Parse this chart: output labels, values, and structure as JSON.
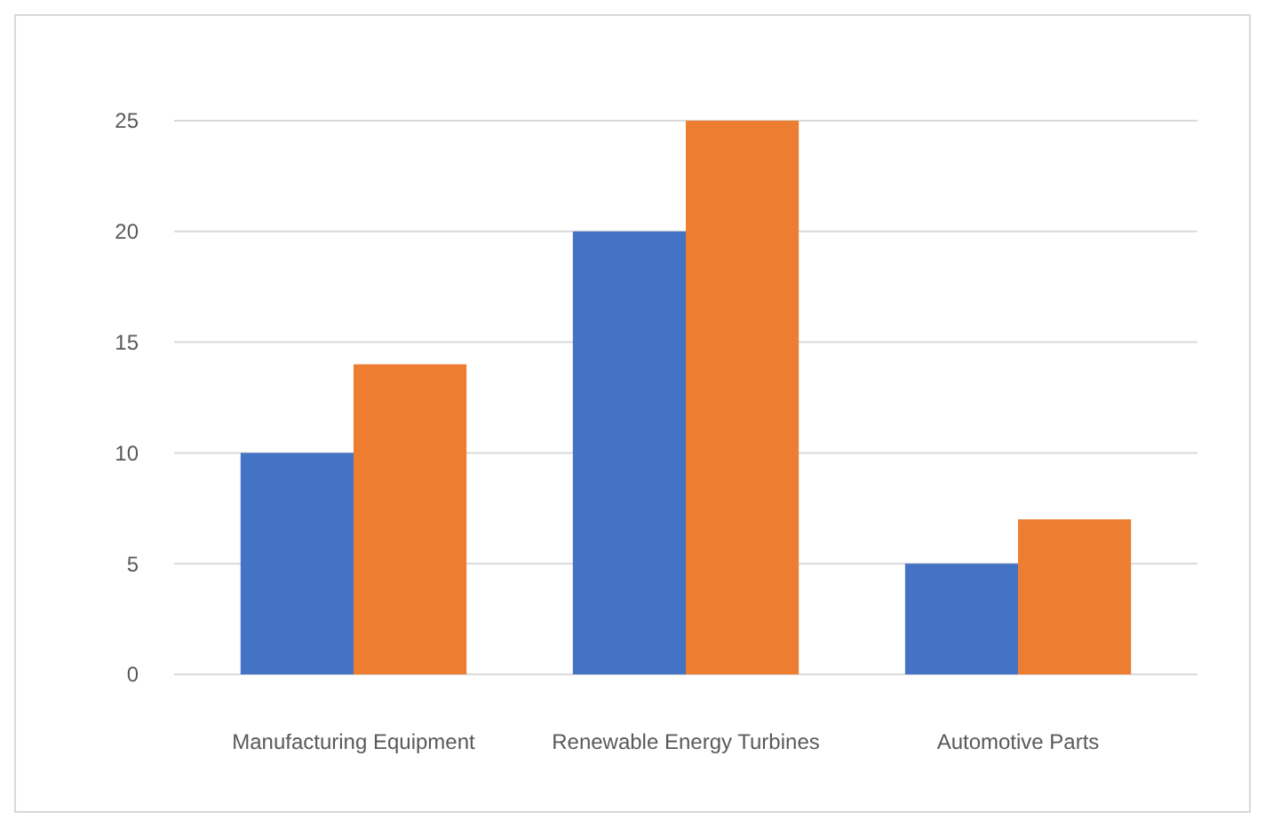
{
  "chart_data": {
    "type": "bar",
    "categories": [
      "Manufacturing Equipment",
      "Renewable Energy Turbines",
      "Automotive Parts"
    ],
    "series": [
      {
        "color": "#4472c4",
        "values": [
          10,
          20,
          5
        ]
      },
      {
        "color": "#ed7d31",
        "values": [
          14,
          25,
          7
        ]
      }
    ],
    "ylim": [
      0,
      25
    ],
    "yticks": [
      0,
      5,
      10,
      15,
      20,
      25
    ],
    "grid": "y"
  }
}
